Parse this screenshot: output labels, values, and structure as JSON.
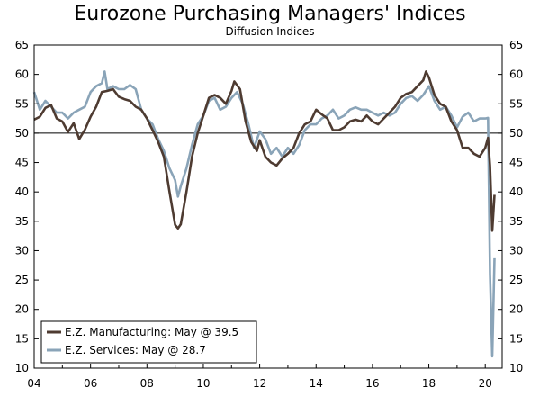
{
  "chart_data": {
    "type": "line",
    "title": "Eurozone Purchasing Managers' Indices",
    "subtitle": "Diffusion Indices",
    "xlabel": "",
    "ylabel": "",
    "xlim": [
      2004,
      2020.6
    ],
    "ylim": [
      10,
      65
    ],
    "y_ticks": [
      10,
      15,
      20,
      25,
      30,
      35,
      40,
      45,
      50,
      55,
      60,
      65
    ],
    "x_ticks": [
      {
        "value": 2004,
        "label": "04"
      },
      {
        "value": 2006,
        "label": "06"
      },
      {
        "value": 2008,
        "label": "08"
      },
      {
        "value": 2010,
        "label": "10"
      },
      {
        "value": 2012,
        "label": "12"
      },
      {
        "value": 2014,
        "label": "14"
      },
      {
        "value": 2016,
        "label": "16"
      },
      {
        "value": 2018,
        "label": "18"
      },
      {
        "value": 2020,
        "label": "20"
      }
    ],
    "reference_line": 50,
    "legend_position": "bottom-left",
    "series": [
      {
        "name": "E.Z. Manufacturing: May @ 39.5",
        "color": "#4e3b31",
        "points": [
          [
            2004.0,
            52.3
          ],
          [
            2004.2,
            52.8
          ],
          [
            2004.4,
            54.3
          ],
          [
            2004.6,
            54.8
          ],
          [
            2004.8,
            52.5
          ],
          [
            2005.0,
            52.0
          ],
          [
            2005.2,
            50.2
          ],
          [
            2005.4,
            51.7
          ],
          [
            2005.6,
            49.0
          ],
          [
            2005.8,
            50.6
          ],
          [
            2006.0,
            52.8
          ],
          [
            2006.2,
            54.5
          ],
          [
            2006.4,
            57.0
          ],
          [
            2006.6,
            57.2
          ],
          [
            2006.8,
            57.5
          ],
          [
            2007.0,
            56.2
          ],
          [
            2007.2,
            55.8
          ],
          [
            2007.4,
            55.5
          ],
          [
            2007.6,
            54.5
          ],
          [
            2007.8,
            54.0
          ],
          [
            2008.0,
            52.5
          ],
          [
            2008.2,
            50.5
          ],
          [
            2008.4,
            48.5
          ],
          [
            2008.6,
            46.0
          ],
          [
            2008.8,
            40.0
          ],
          [
            2009.0,
            34.4
          ],
          [
            2009.1,
            33.8
          ],
          [
            2009.2,
            34.5
          ],
          [
            2009.4,
            40.0
          ],
          [
            2009.6,
            46.0
          ],
          [
            2009.8,
            50.0
          ],
          [
            2010.0,
            53.0
          ],
          [
            2010.2,
            56.0
          ],
          [
            2010.4,
            56.5
          ],
          [
            2010.6,
            56.0
          ],
          [
            2010.8,
            55.0
          ],
          [
            2011.0,
            57.2
          ],
          [
            2011.1,
            58.8
          ],
          [
            2011.3,
            57.5
          ],
          [
            2011.5,
            52.0
          ],
          [
            2011.7,
            48.5
          ],
          [
            2011.9,
            47.0
          ],
          [
            2012.0,
            48.8
          ],
          [
            2012.2,
            46.0
          ],
          [
            2012.4,
            45.0
          ],
          [
            2012.6,
            44.5
          ],
          [
            2012.8,
            45.7
          ],
          [
            2013.0,
            46.5
          ],
          [
            2013.2,
            47.5
          ],
          [
            2013.4,
            50.0
          ],
          [
            2013.6,
            51.5
          ],
          [
            2013.8,
            52.0
          ],
          [
            2014.0,
            54.0
          ],
          [
            2014.2,
            53.2
          ],
          [
            2014.4,
            52.5
          ],
          [
            2014.6,
            50.5
          ],
          [
            2014.8,
            50.5
          ],
          [
            2015.0,
            51.0
          ],
          [
            2015.2,
            52.0
          ],
          [
            2015.4,
            52.3
          ],
          [
            2015.6,
            52.0
          ],
          [
            2015.8,
            53.0
          ],
          [
            2016.0,
            52.0
          ],
          [
            2016.2,
            51.5
          ],
          [
            2016.4,
            52.5
          ],
          [
            2016.6,
            53.5
          ],
          [
            2016.8,
            54.5
          ],
          [
            2017.0,
            56.0
          ],
          [
            2017.2,
            56.7
          ],
          [
            2017.4,
            57.0
          ],
          [
            2017.6,
            58.0
          ],
          [
            2017.8,
            59.0
          ],
          [
            2017.9,
            60.5
          ],
          [
            2018.0,
            59.5
          ],
          [
            2018.2,
            56.5
          ],
          [
            2018.4,
            55.0
          ],
          [
            2018.6,
            54.5
          ],
          [
            2018.8,
            52.0
          ],
          [
            2019.0,
            50.5
          ],
          [
            2019.2,
            47.5
          ],
          [
            2019.4,
            47.5
          ],
          [
            2019.6,
            46.5
          ],
          [
            2019.8,
            46.0
          ],
          [
            2020.0,
            47.5
          ],
          [
            2020.1,
            49.2
          ],
          [
            2020.17,
            44.5
          ],
          [
            2020.25,
            33.4
          ],
          [
            2020.33,
            39.5
          ]
        ]
      },
      {
        "name": "E.Z. Services: May @ 28.7",
        "color": "#8aa4b8",
        "points": [
          [
            2004.0,
            57.0
          ],
          [
            2004.2,
            54.0
          ],
          [
            2004.4,
            55.5
          ],
          [
            2004.6,
            54.5
          ],
          [
            2004.8,
            53.5
          ],
          [
            2005.0,
            53.5
          ],
          [
            2005.2,
            52.5
          ],
          [
            2005.4,
            53.5
          ],
          [
            2005.6,
            54.0
          ],
          [
            2005.8,
            54.5
          ],
          [
            2006.0,
            57.0
          ],
          [
            2006.2,
            58.0
          ],
          [
            2006.4,
            58.5
          ],
          [
            2006.5,
            60.5
          ],
          [
            2006.6,
            57.5
          ],
          [
            2006.8,
            58.0
          ],
          [
            2007.0,
            57.5
          ],
          [
            2007.2,
            57.5
          ],
          [
            2007.4,
            58.2
          ],
          [
            2007.6,
            57.5
          ],
          [
            2007.8,
            54.0
          ],
          [
            2008.0,
            52.5
          ],
          [
            2008.2,
            51.5
          ],
          [
            2008.4,
            49.0
          ],
          [
            2008.6,
            47.0
          ],
          [
            2008.8,
            44.0
          ],
          [
            2009.0,
            42.0
          ],
          [
            2009.1,
            39.2
          ],
          [
            2009.2,
            41.0
          ],
          [
            2009.4,
            44.0
          ],
          [
            2009.6,
            48.0
          ],
          [
            2009.8,
            51.5
          ],
          [
            2010.0,
            53.0
          ],
          [
            2010.2,
            55.5
          ],
          [
            2010.4,
            56.0
          ],
          [
            2010.6,
            54.0
          ],
          [
            2010.8,
            54.5
          ],
          [
            2011.0,
            56.0
          ],
          [
            2011.2,
            57.0
          ],
          [
            2011.4,
            55.0
          ],
          [
            2011.6,
            51.5
          ],
          [
            2011.8,
            47.5
          ],
          [
            2012.0,
            50.3
          ],
          [
            2012.2,
            49.0
          ],
          [
            2012.4,
            46.5
          ],
          [
            2012.6,
            47.5
          ],
          [
            2012.8,
            46.0
          ],
          [
            2013.0,
            47.5
          ],
          [
            2013.2,
            46.5
          ],
          [
            2013.4,
            48.0
          ],
          [
            2013.6,
            50.5
          ],
          [
            2013.8,
            51.5
          ],
          [
            2014.0,
            51.5
          ],
          [
            2014.2,
            52.5
          ],
          [
            2014.4,
            53.0
          ],
          [
            2014.6,
            54.0
          ],
          [
            2014.8,
            52.5
          ],
          [
            2015.0,
            53.0
          ],
          [
            2015.2,
            54.0
          ],
          [
            2015.4,
            54.4
          ],
          [
            2015.6,
            54.0
          ],
          [
            2015.8,
            54.0
          ],
          [
            2016.0,
            53.5
          ],
          [
            2016.2,
            53.0
          ],
          [
            2016.4,
            53.5
          ],
          [
            2016.6,
            53.0
          ],
          [
            2016.8,
            53.5
          ],
          [
            2017.0,
            55.0
          ],
          [
            2017.2,
            56.0
          ],
          [
            2017.4,
            56.3
          ],
          [
            2017.6,
            55.5
          ],
          [
            2017.8,
            56.5
          ],
          [
            2018.0,
            58.0
          ],
          [
            2018.2,
            55.5
          ],
          [
            2018.4,
            54.0
          ],
          [
            2018.6,
            54.5
          ],
          [
            2018.8,
            53.0
          ],
          [
            2019.0,
            51.0
          ],
          [
            2019.2,
            52.8
          ],
          [
            2019.4,
            53.5
          ],
          [
            2019.6,
            52.0
          ],
          [
            2019.8,
            52.5
          ],
          [
            2020.0,
            52.5
          ],
          [
            2020.1,
            52.6
          ],
          [
            2020.17,
            26.0
          ],
          [
            2020.25,
            12.0
          ],
          [
            2020.33,
            28.7
          ]
        ]
      }
    ]
  }
}
